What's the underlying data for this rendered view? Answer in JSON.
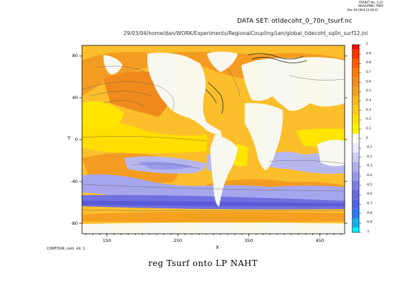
{
  "header": {
    "ferret_version": "FERRET Ver. 5.22",
    "ferret_org": "NOAA/PMEL TMAP",
    "plot_date": "Mar 29 2004 14:29:41",
    "dataset": "DATA SET: otldecoht_0_70n_tsurf.nc",
    "path": "29/03/04/home/dan/WORK/Experiments/RegionalCoupling/Len/global_tidecoht_sq0n_surf12.jnl"
  },
  "footer": {
    "contour_note": "CONTOUR: cont. int: 1",
    "caption": "reg Tsurf onto  LP NAHT"
  },
  "chart_data": {
    "type": "heatmap",
    "title": "reg Tsurf onto  LP NAHT",
    "xlabel": "X",
    "ylabel": "Y",
    "xticks": [
      "150",
      "250",
      "350",
      "450"
    ],
    "xtick_values": [
      150,
      250,
      350,
      450
    ],
    "yticks": [
      "80",
      "40",
      "0",
      "-40",
      "-80"
    ],
    "ytick_values": [
      80,
      40,
      0,
      -40,
      -80
    ],
    "xlim": [
      115,
      485
    ],
    "ylim": [
      -90,
      90
    ],
    "colorbar": {
      "min": -1,
      "max": 1,
      "labels": [
        "1",
        "0.9",
        "0.8",
        "0.7",
        "0.6",
        "0.5",
        "0.4",
        "0.3",
        "0.2",
        "0.1",
        "0",
        "-0.1",
        "-0.2",
        "-0.3",
        "-0.4",
        "-0.5",
        "-0.6",
        "-0.7",
        "-0.8",
        "-0.9",
        "-1"
      ],
      "colors": [
        "#ff0000",
        "#ff3300",
        "#ff5a00",
        "#ff7b00",
        "#f28a1c",
        "#f5a021",
        "#f9b822",
        "#fccb1c",
        "#ffe000",
        "#fff200",
        "#fffdf0",
        "#eceafc",
        "#cdcdf6",
        "#b0b0f0",
        "#9898ec",
        "#7d7de6",
        "#6a6ae0",
        "#4f60e8",
        "#2b7af0",
        "#17b0ee",
        "#00f0ff"
      ]
    },
    "grid": false
  }
}
